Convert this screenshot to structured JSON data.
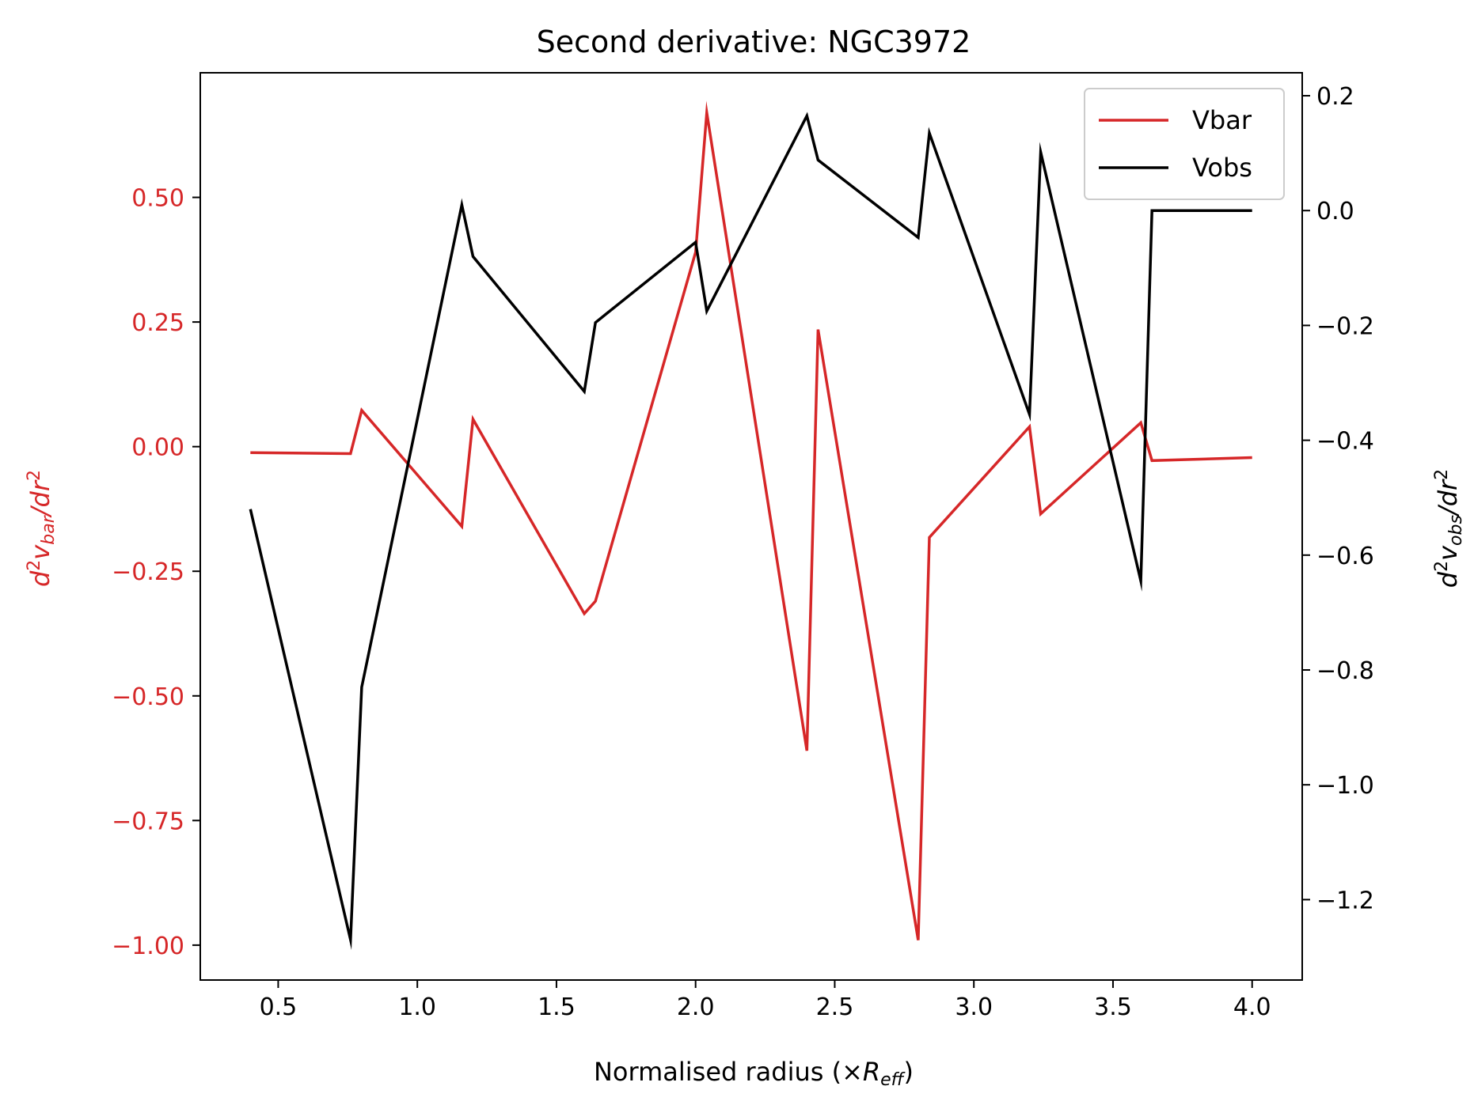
{
  "chart_data": {
    "type": "line",
    "title": "Second derivative: NGC3972",
    "xlabel": {
      "prefix": "Normalised radius (×",
      "var": "R",
      "sub": "eff",
      "suffix": ")"
    },
    "ylabel_left": {
      "pre": "d",
      "sup": "2",
      "var": "v",
      "sub": "bar",
      "mid": "/dr",
      "sup2": "2"
    },
    "ylabel_right": {
      "pre": "d",
      "sup": "2",
      "var": "v",
      "sub": "obs",
      "mid": "/dr",
      "sup2": "2"
    },
    "xlim": [
      0.22,
      4.18
    ],
    "ylim_left": [
      -1.07,
      0.75
    ],
    "ylim_right": [
      -1.34,
      0.24
    ],
    "x_ticks": [
      "0.5",
      "1.0",
      "1.5",
      "2.0",
      "2.5",
      "3.0",
      "3.5",
      "4.0"
    ],
    "y_ticks_left": [
      "0.50",
      "0.25",
      "0.00",
      "−0.25",
      "−0.50",
      "−0.75",
      "−1.00"
    ],
    "y_ticks_right": [
      "0.2",
      "0.0",
      "−0.2",
      "−0.4",
      "−0.6",
      "−0.8",
      "−1.0",
      "−1.2"
    ],
    "left_axis_color": "#d62728",
    "right_axis_color": "#000000",
    "grid": false,
    "legend_position": "upper-right",
    "series": [
      {
        "name": "Vbar",
        "axis": "left",
        "color": "#d62728",
        "x": [
          0.4,
          0.76,
          0.8,
          1.16,
          1.2,
          1.6,
          1.64,
          2.0,
          2.04,
          2.4,
          2.44,
          2.8,
          2.84,
          3.2,
          3.24,
          3.6,
          3.64,
          4.0
        ],
        "y": [
          -0.012,
          -0.014,
          0.073,
          -0.16,
          0.055,
          -0.335,
          -0.31,
          0.39,
          0.67,
          -0.61,
          0.235,
          -0.99,
          -0.182,
          0.04,
          -0.135,
          0.048,
          -0.028,
          -0.022
        ]
      },
      {
        "name": "Vobs",
        "axis": "right",
        "color": "#000000",
        "x": [
          0.4,
          0.76,
          0.8,
          1.16,
          1.2,
          1.6,
          1.64,
          2.0,
          2.04,
          2.4,
          2.44,
          2.8,
          2.84,
          3.2,
          3.24,
          3.6,
          3.64,
          4.0
        ],
        "y": [
          -0.52,
          -1.27,
          -0.83,
          0.01,
          -0.08,
          -0.315,
          -0.195,
          -0.055,
          -0.175,
          0.165,
          0.088,
          -0.047,
          0.135,
          -0.355,
          0.102,
          -0.645,
          0.0,
          0.0
        ]
      }
    ]
  }
}
